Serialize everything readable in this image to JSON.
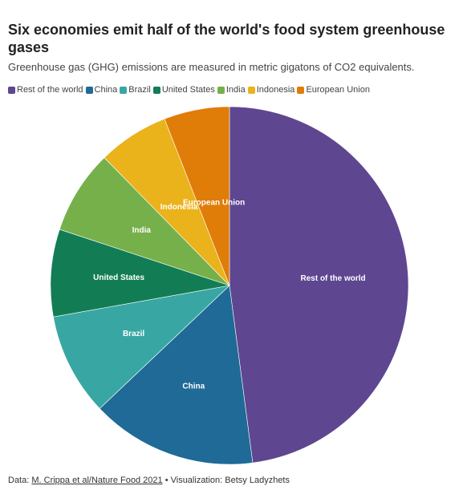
{
  "chart_data": {
    "type": "pie",
    "title": "Six economies emit half of the world's food system greenhouse gases",
    "subtitle": "Greenhouse gas (GHG) emissions are measured in metric gigatons of CO2 equivalents.",
    "categories": [
      "Rest of the world",
      "China",
      "Brazil",
      "United States",
      "India",
      "Indonesia",
      "European Union"
    ],
    "values": [
      48.6,
      15.2,
      9.4,
      8.0,
      7.7,
      6.5,
      6.0
    ],
    "colors": [
      "#5e4691",
      "#1f6a96",
      "#38a7a3",
      "#127d55",
      "#76b04a",
      "#eab21b",
      "#e07c08"
    ],
    "legend_position": "top-left",
    "data_labels": [
      "Rest of the world",
      "China",
      "Brazil",
      "United States",
      "India",
      "Indonesia",
      "European Union"
    ]
  },
  "footer": {
    "data_prefix": "Data:",
    "source_link": "M. Crippa et al/Nature Food 2021",
    "separator": "•",
    "visualization": "Visualization: Betsy Ladyzhets"
  }
}
